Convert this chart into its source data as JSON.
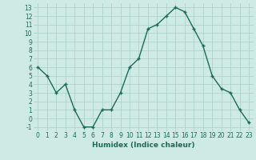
{
  "x": [
    0,
    1,
    2,
    3,
    4,
    5,
    6,
    7,
    8,
    9,
    10,
    11,
    12,
    13,
    14,
    15,
    16,
    17,
    18,
    19,
    20,
    21,
    22,
    23
  ],
  "y": [
    6,
    5,
    3,
    4,
    1,
    -1,
    -1,
    1,
    1,
    3,
    6,
    7,
    10.5,
    11,
    12,
    13,
    12.5,
    10.5,
    8.5,
    5,
    3.5,
    3,
    1,
    -0.5
  ],
  "line_color": "#1a6b5a",
  "marker": "+",
  "marker_size": 3,
  "linewidth": 1.0,
  "xlabel": "Humidex (Indice chaleur)",
  "xlabel_fontsize": 6.5,
  "xlabel_weight": "bold",
  "background_color": "#ceeae4",
  "grid_color": "#aacec8",
  "ylim": [
    -1.5,
    13.5
  ],
  "xlim": [
    -0.5,
    23.5
  ],
  "yticks": [
    -1,
    0,
    1,
    2,
    3,
    4,
    5,
    6,
    7,
    8,
    9,
    10,
    11,
    12,
    13
  ],
  "xticks": [
    0,
    1,
    2,
    3,
    4,
    5,
    6,
    7,
    8,
    9,
    10,
    11,
    12,
    13,
    14,
    15,
    16,
    17,
    18,
    19,
    20,
    21,
    22,
    23
  ],
  "tick_fontsize": 5.5,
  "tick_color": "#1a6b5a",
  "markeredgewidth": 1.0
}
